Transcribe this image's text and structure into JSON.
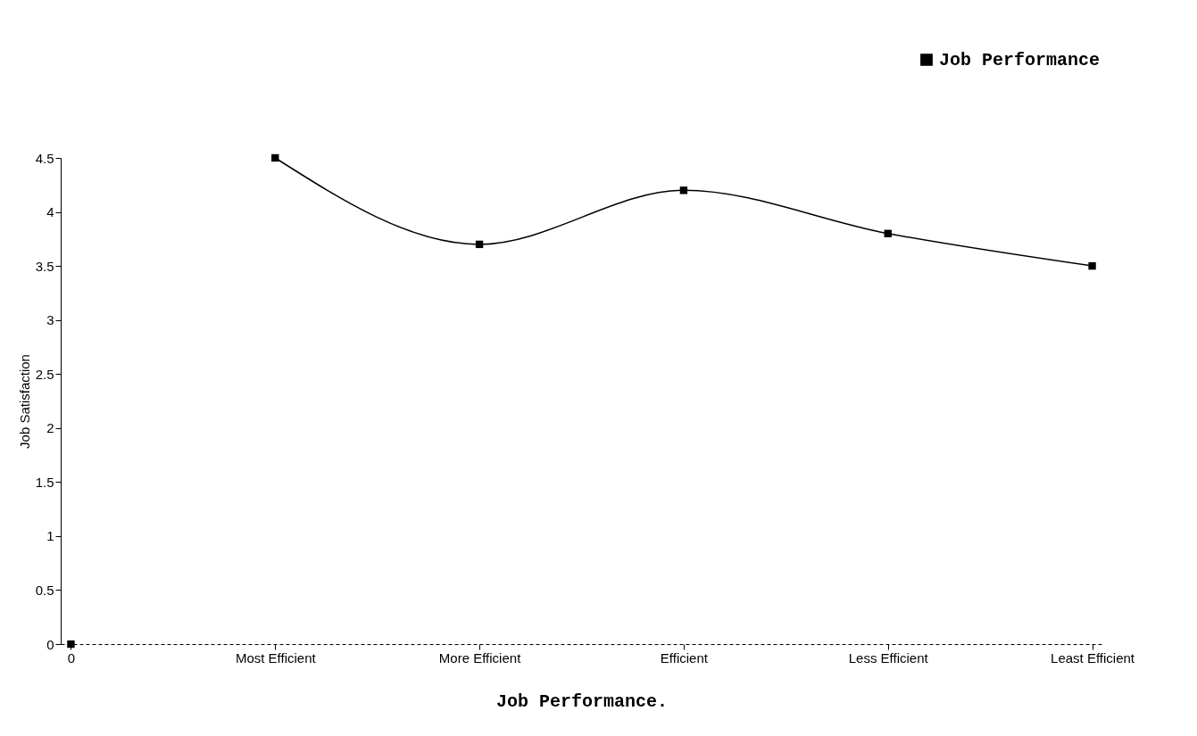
{
  "chart_data": {
    "type": "line",
    "xlabel": "Job Performance.",
    "ylabel": "Job Satisfaction",
    "categories": [
      "0",
      "Most Efficient",
      "More Efficient",
      "Efficient",
      "Less Efficient",
      "Least Efficient"
    ],
    "series": [
      {
        "name": "Job Performance",
        "color": "#000000",
        "values": [
          null,
          4.5,
          3.7,
          4.2,
          3.8,
          3.5
        ]
      },
      {
        "type": "scatter",
        "color": "#000000",
        "values": [
          0,
          null,
          null,
          null,
          null,
          null
        ]
      }
    ],
    "ylim": [
      0,
      4.5
    ],
    "yticks": [
      0,
      0.5,
      1,
      1.5,
      2,
      2.5,
      3,
      3.5,
      4,
      4.5
    ],
    "grid": false,
    "legend": "top right",
    "marker": "square",
    "line_style": "solid"
  }
}
